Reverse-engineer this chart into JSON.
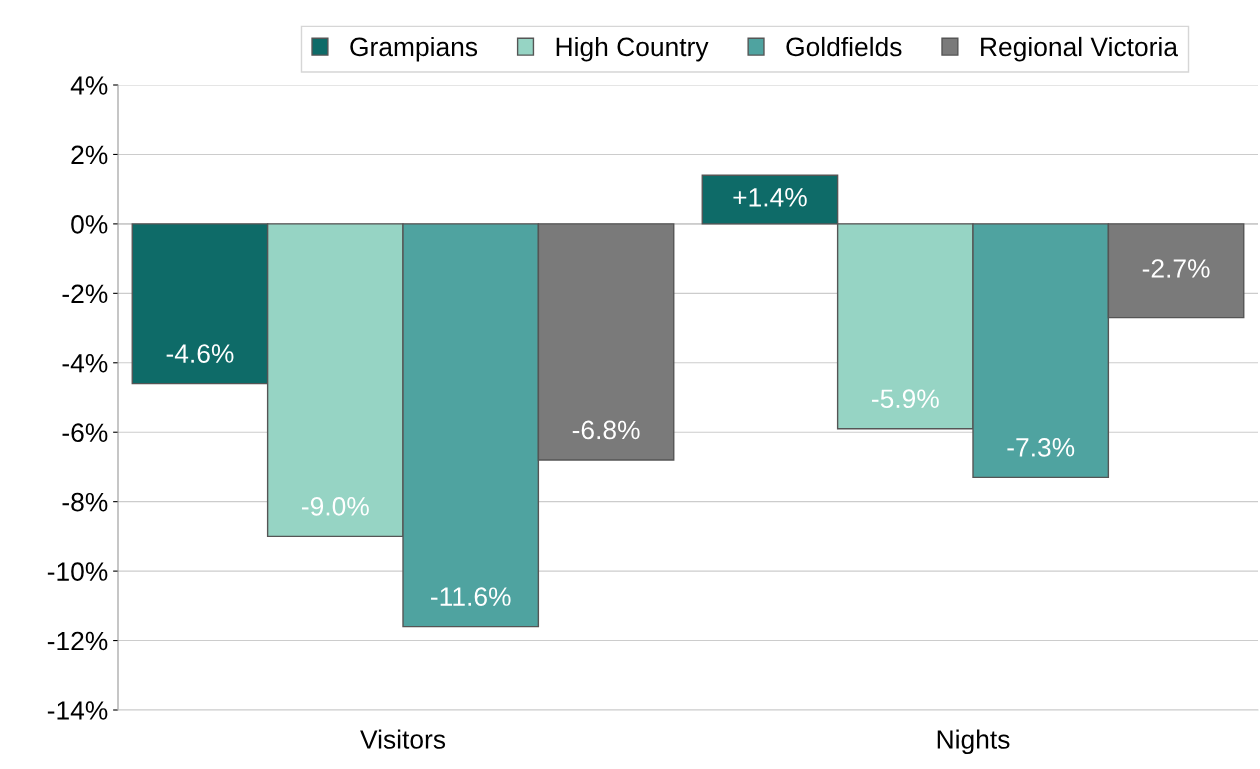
{
  "chart_data": {
    "type": "bar",
    "categories": [
      "Visitors",
      "Nights"
    ],
    "series": [
      {
        "name": "Grampians",
        "color": "#0e6b68",
        "values": [
          -4.6,
          1.4
        ],
        "value_labels": [
          "-4.6%",
          "+1.4%"
        ]
      },
      {
        "name": "High Country",
        "color": "#96d4c4",
        "values": [
          -9.0,
          -5.9
        ],
        "value_labels": [
          "-9.0%",
          "-5.9%"
        ]
      },
      {
        "name": "Goldfields",
        "color": "#4fa3a0",
        "values": [
          -11.6,
          -7.3
        ],
        "value_labels": [
          "-11.6%",
          "-7.3%"
        ]
      },
      {
        "name": "Regional Victoria",
        "color": "#7a7a7a",
        "values": [
          -6.8,
          -2.7
        ],
        "value_labels": [
          "-6.8%",
          "-2.7%"
        ]
      }
    ],
    "ylim": [
      -14,
      4
    ],
    "yticks": [
      {
        "value": -14,
        "label": "-14%"
      },
      {
        "value": -12,
        "label": "-12%"
      },
      {
        "value": -10,
        "label": "-10%"
      },
      {
        "value": -8,
        "label": "-8%"
      },
      {
        "value": -6,
        "label": "-6%"
      },
      {
        "value": -4,
        "label": "-4%"
      },
      {
        "value": -2,
        "label": "-2%"
      },
      {
        "value": 0,
        "label": "0%"
      },
      {
        "value": 2,
        "label": "2%"
      },
      {
        "value": 4,
        "label": "4%"
      }
    ],
    "grid": "y",
    "legend": "top"
  }
}
